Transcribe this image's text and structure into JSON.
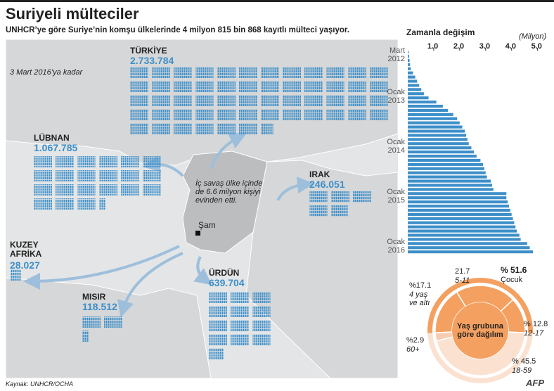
{
  "title": "Suriyeli mülteciler",
  "subtitle": "UNHCR’ye göre Suriye’nin komşu ülkelerinde  4 milyon 815 bin 868 kayıtlı mülteci yaşıyor.",
  "date_note": "3 Mart 2016’ya kadar",
  "annotation": "İç savaş ülke içinde de 6.6 milyon kişiyi evinden etti.",
  "capital": "Şam",
  "countries": [
    {
      "name": "TÜRKİYE",
      "value": 2733784,
      "value_label": "2.733.784"
    },
    {
      "name": "LÜBNAN",
      "value": 1067785,
      "value_label": "1.067.785"
    },
    {
      "name": "IRAK",
      "value": 246051,
      "value_label": "246.051"
    },
    {
      "name": "KUZEY AFRİKA",
      "value": 28027,
      "value_label": "28.027"
    },
    {
      "name": "MISIR",
      "value": 118512,
      "value_label": "118.512"
    },
    {
      "name": "ÜRDÜN",
      "value": 639704,
      "value_label": "639.704"
    }
  ],
  "chart_data": [
    {
      "type": "bar",
      "title": "Zamanla değişim",
      "unit": "(Milyon)",
      "categories": [
        "Mart 2012",
        null,
        null,
        null,
        null,
        null,
        null,
        null,
        null,
        null,
        "Ocak 2013",
        null,
        null,
        null,
        null,
        null,
        null,
        null,
        null,
        null,
        null,
        null,
        "Ocak 2014",
        null,
        null,
        null,
        null,
        null,
        null,
        null,
        null,
        null,
        null,
        null,
        "Ocak 2015",
        null,
        null,
        null,
        null,
        null,
        null,
        null,
        null,
        null,
        null,
        null,
        "Ocak 2016",
        null,
        null
      ],
      "values": [
        0.03,
        0.05,
        0.07,
        0.09,
        0.12,
        0.2,
        0.29,
        0.36,
        0.44,
        0.52,
        0.62,
        0.8,
        1.1,
        1.35,
        1.55,
        1.75,
        1.9,
        2.0,
        2.1,
        2.2,
        2.25,
        2.3,
        2.35,
        2.45,
        2.55,
        2.65,
        2.8,
        2.9,
        2.95,
        3.0,
        3.05,
        3.2,
        3.25,
        3.3,
        3.8,
        3.8,
        3.85,
        3.9,
        3.95,
        4.0,
        4.05,
        4.1,
        4.15,
        4.2,
        4.3,
        4.35,
        4.6,
        4.7,
        4.82
      ],
      "color": "#3d8fc9",
      "xlim": [
        0,
        5.2
      ],
      "xticks": [
        {
          "value": 1,
          "label": "1.0"
        },
        {
          "value": 2,
          "label": "2.0"
        },
        {
          "value": 3,
          "label": "3.0"
        },
        {
          "value": 4,
          "label": "4.0"
        },
        {
          "value": 5,
          "label": "5.0"
        }
      ]
    },
    {
      "type": "donut",
      "title": "Yaş grubuna göre dağılım",
      "children": {
        "value": 51.6,
        "value_label": "% 51.6",
        "label": "Çocuk"
      },
      "categories": [
        "4 yaş ve altı",
        "5-11",
        "12-17",
        "18-59",
        "60+"
      ],
      "values": [
        17.1,
        21.7,
        12.8,
        45.5,
        2.9
      ],
      "value_labels": [
        "%17.1",
        "21.7",
        "% 12.8",
        "% 45.5",
        "%2.9"
      ],
      "colors": [
        "#f4a060",
        "#f4a060",
        "#f4a060",
        "#fbe1cf",
        "#f6cdb0"
      ]
    }
  ],
  "source": "Kaynak: UNHCR/OCHA",
  "logo": "AFP"
}
